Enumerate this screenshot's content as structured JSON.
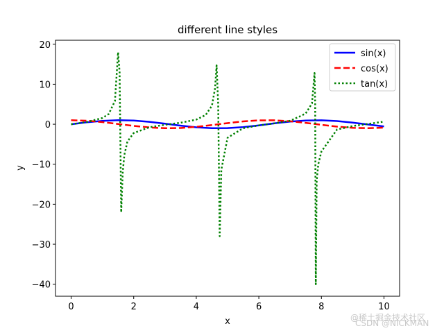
{
  "chart_data": {
    "type": "line",
    "title": "different line styles",
    "xlabel": "x",
    "ylabel": "y",
    "xlim": [
      -0.5,
      10.5
    ],
    "ylim": [
      -43,
      21
    ],
    "xticks": [
      0,
      2,
      4,
      6,
      8,
      10
    ],
    "xtick_labels": [
      "0",
      "2",
      "4",
      "6",
      "8",
      "10"
    ],
    "yticks": [
      20,
      10,
      0,
      -10,
      -20,
      -30,
      -40
    ],
    "ytick_labels": [
      "20",
      "10",
      "0",
      "−10",
      "−20",
      "−30",
      "−40"
    ],
    "grid": false,
    "legend_position": "top-right",
    "series": [
      {
        "name": "sin(x)",
        "color": "#0000ff",
        "style": "solid",
        "x": [
          0,
          0.5,
          1,
          1.5,
          2,
          2.5,
          3,
          3.5,
          4,
          4.5,
          5,
          5.5,
          6,
          6.5,
          7,
          7.5,
          8,
          8.5,
          9,
          9.5,
          10
        ],
        "y": [
          0,
          0.48,
          0.84,
          1.0,
          0.91,
          0.6,
          0.14,
          -0.35,
          -0.76,
          -0.98,
          -0.96,
          -0.71,
          -0.28,
          0.22,
          0.66,
          0.94,
          0.99,
          0.8,
          0.41,
          -0.08,
          -0.54
        ]
      },
      {
        "name": "cos(x)",
        "color": "#ff0000",
        "style": "dashed",
        "x": [
          0,
          0.5,
          1,
          1.5,
          2,
          2.5,
          3,
          3.5,
          4,
          4.5,
          5,
          5.5,
          6,
          6.5,
          7,
          7.5,
          8,
          8.5,
          9,
          9.5,
          10
        ],
        "y": [
          1.0,
          0.88,
          0.54,
          0.07,
          -0.42,
          -0.8,
          -0.99,
          -0.94,
          -0.65,
          -0.21,
          0.28,
          0.71,
          0.96,
          0.98,
          0.75,
          0.35,
          -0.15,
          -0.6,
          -0.91,
          -1.0,
          -0.84
        ]
      },
      {
        "name": "tan(x)",
        "color": "#008000",
        "style": "dotted",
        "x": [
          0,
          0.5,
          1,
          1.2,
          1.4,
          1.5,
          1.55,
          1.6,
          1.65,
          1.7,
          1.8,
          2,
          2.5,
          3,
          3.5,
          4,
          4.3,
          4.5,
          4.6,
          4.65,
          4.7,
          4.75,
          4.8,
          5,
          5.5,
          6,
          6.5,
          7,
          7.3,
          7.5,
          7.7,
          7.78,
          7.8,
          7.82,
          7.85,
          7.9,
          8,
          8.5,
          9,
          9.5,
          10
        ],
        "y": [
          0,
          0.55,
          1.56,
          2.57,
          5.8,
          18.0,
          13.0,
          -22.0,
          -12.0,
          -7.7,
          -4.3,
          -2.2,
          -0.75,
          -0.14,
          0.37,
          1.16,
          2.28,
          4.64,
          9.0,
          14.7,
          5.0,
          -28.0,
          -11.4,
          -3.38,
          -0.99,
          -0.29,
          0.22,
          0.87,
          1.92,
          2.71,
          5.2,
          12.8,
          5.0,
          -40.0,
          -14.0,
          -10.0,
          -6.8,
          -1.33,
          -0.45,
          0.09,
          0.65
        ]
      }
    ]
  },
  "watermark": {
    "text": "@稀土掘金技术社区",
    "subtext": "CSDN @NICKMAN"
  }
}
